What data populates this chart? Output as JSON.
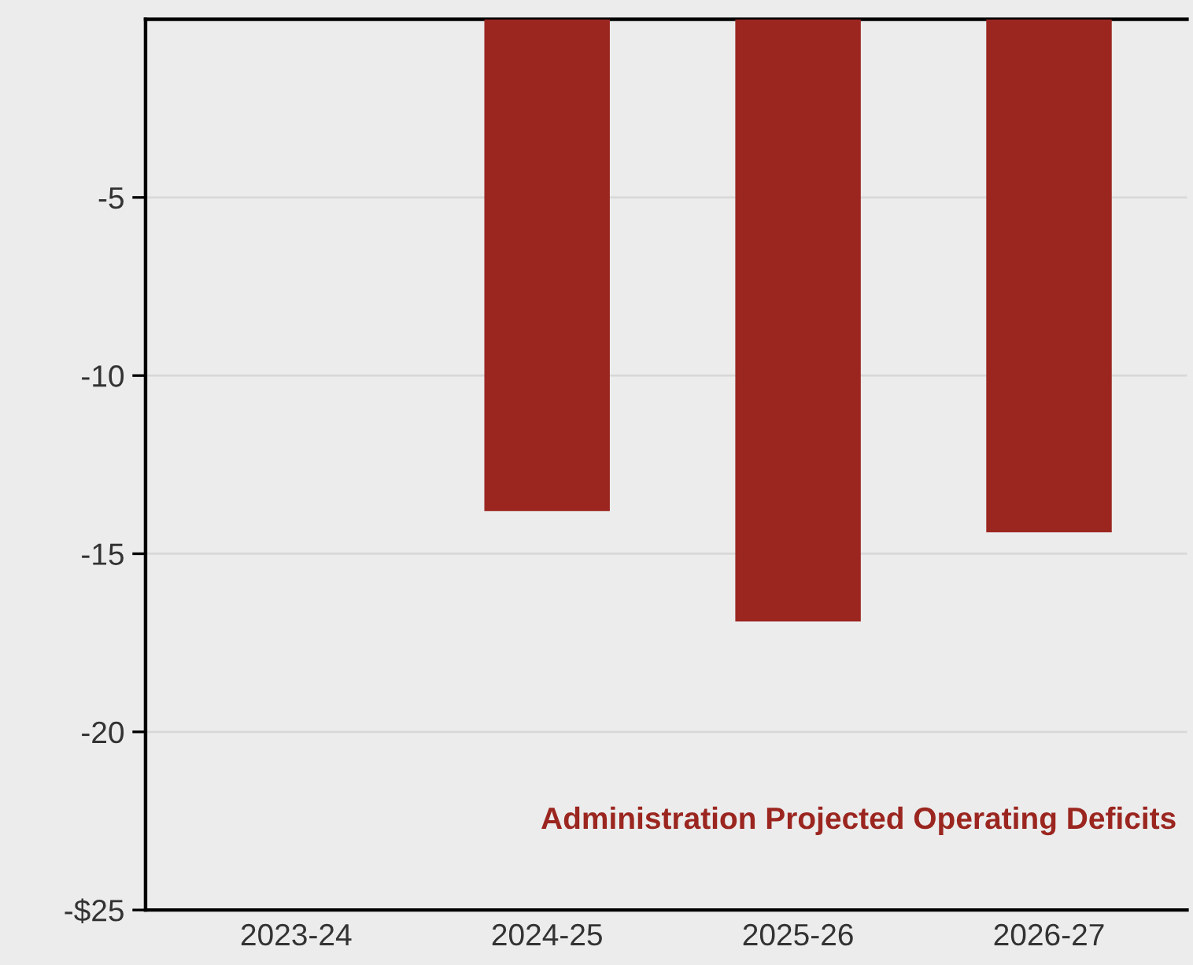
{
  "chart_data": {
    "type": "bar",
    "categories": [
      "2023-24",
      "2024-25",
      "2025-26",
      "2026-27"
    ],
    "values": [
      null,
      -13.8,
      -16.9,
      -14.4
    ],
    "color": "#9b2620",
    "ylim": [
      -25,
      0
    ],
    "yticks": [
      {
        "value": -25,
        "label": "-$25"
      },
      -20,
      -15,
      -10,
      -5
    ],
    "grid": "y",
    "legend": false,
    "annotations": [
      "Administration Projected Operating Deficits"
    ]
  }
}
